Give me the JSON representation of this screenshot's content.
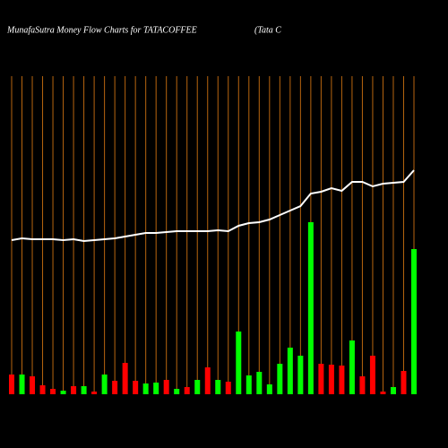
{
  "chart_data": {
    "type": "bar",
    "title": "MunafaSutra  Money Flow  Charts for TATACOFFEE",
    "subtitle": "(Tata  C",
    "categories": [
      null,
      null,
      null,
      null,
      null,
      null,
      null,
      null,
      null,
      null,
      null,
      null,
      null,
      null,
      null,
      null,
      null,
      null,
      null,
      null,
      null,
      null,
      null,
      null,
      null,
      null,
      null,
      null,
      null,
      null,
      null,
      null,
      null,
      null,
      null,
      null,
      null,
      null,
      null,
      null
    ],
    "series": [
      {
        "name": null,
        "colors": [
          "#ff0000",
          "#00ff00",
          "#ff0000",
          "#ff0000",
          "#ff0000",
          "#00ff00",
          "#ff0000",
          "#00ff00",
          "#ff0000",
          "#00ff00",
          "#ff0000",
          "#ff0000",
          "#ff0000",
          "#00ff00",
          "#00ff00",
          "#ff0000",
          "#00ff00",
          "#ff0000",
          "#00ff00",
          "#ff0000",
          "#00ff00",
          "#ff0000",
          "#00ff00",
          "#00ff00",
          "#00ff00",
          "#00ff00",
          "#00ff00",
          "#00ff00",
          "#00ff00",
          "#00ff00",
          "#ff0000",
          "#ff0000",
          "#ff0000",
          "#00ff00",
          "#ff0000",
          "#ff0000",
          "#ff0000",
          "#00ff00",
          "#ff0000",
          "#00ff00"
        ],
        "values": [
          22,
          22,
          20,
          10,
          6,
          4,
          9,
          9,
          3,
          22,
          15,
          35,
          15,
          12,
          13,
          16,
          6,
          8,
          16,
          30,
          16,
          14,
          70,
          21,
          25,
          11,
          34,
          52,
          43,
          192,
          34,
          33,
          32,
          60,
          20,
          43,
          3,
          8,
          26,
          162
        ]
      },
      {
        "name": null,
        "type": "line",
        "axis": "y2",
        "color": "#ffffff",
        "values": [
          172,
          174,
          173,
          173,
          173,
          172,
          173,
          171,
          172,
          173,
          174,
          176,
          178,
          180,
          180,
          181,
          182,
          182,
          182,
          182,
          183,
          182,
          188,
          191,
          192,
          195,
          200,
          205,
          210,
          224,
          226,
          230,
          227,
          237,
          237,
          232,
          235,
          236,
          237,
          250
        ]
      }
    ],
    "ylim": [
      0,
      440
    ],
    "y2lim": [
      0,
      440
    ],
    "grid": true,
    "grid_color": "#b8650f"
  }
}
